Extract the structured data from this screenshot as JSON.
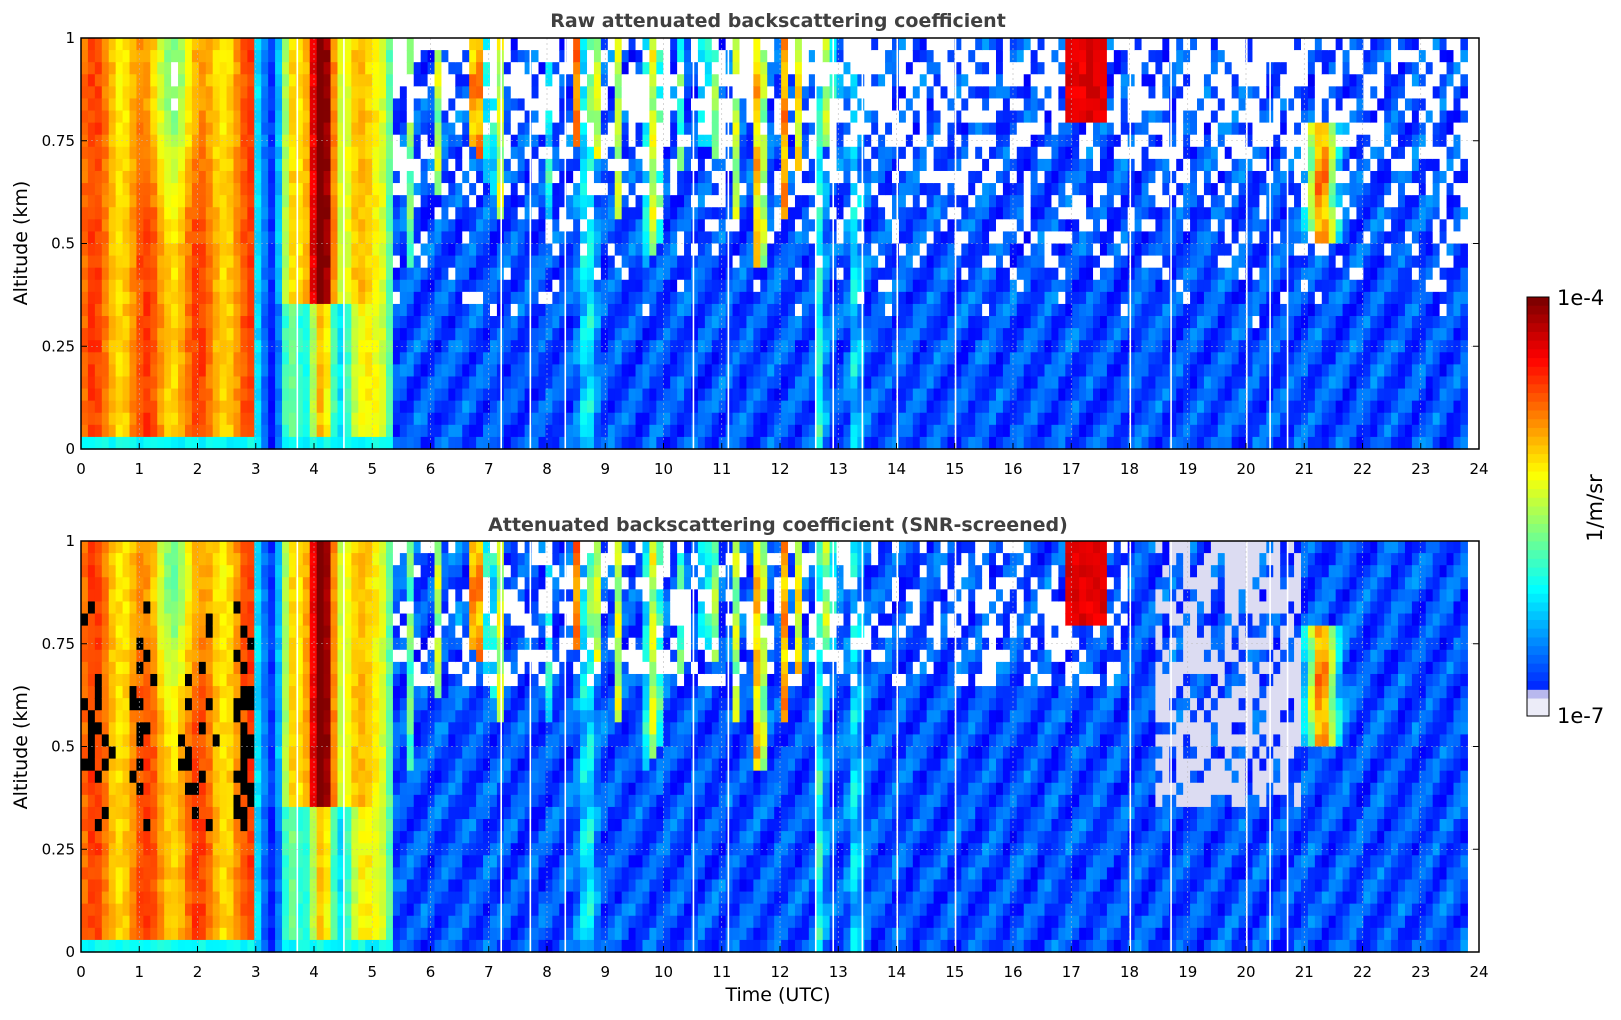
{
  "chart_data": [
    {
      "type": "heatmap",
      "title": "Raw attenuated backscattering coefficient",
      "ylabel": "Altitude (km)",
      "xlabel": "",
      "x_ticks": [
        "0",
        "1",
        "2",
        "3",
        "4",
        "5",
        "6",
        "7",
        "8",
        "9",
        "10",
        "11",
        "12",
        "13",
        "14",
        "15",
        "16",
        "17",
        "18",
        "19",
        "20",
        "21",
        "22",
        "23",
        "24"
      ],
      "y_ticks": [
        "0",
        "0.25",
        "0.5",
        "0.75",
        "1"
      ],
      "xlim": [
        0,
        24
      ],
      "ylim": [
        0,
        1
      ],
      "grid": true,
      "screened": false
    },
    {
      "type": "heatmap",
      "title": "Attenuated backscattering coefficient (SNR-screened)",
      "ylabel": "Altitude (km)",
      "xlabel": "Time (UTC)",
      "x_ticks": [
        "0",
        "1",
        "2",
        "3",
        "4",
        "5",
        "6",
        "7",
        "8",
        "9",
        "10",
        "11",
        "12",
        "13",
        "14",
        "15",
        "16",
        "17",
        "18",
        "19",
        "20",
        "21",
        "22",
        "23",
        "24"
      ],
      "y_ticks": [
        "0",
        "0.25",
        "0.5",
        "0.75",
        "1"
      ],
      "xlim": [
        0,
        24
      ],
      "ylim": [
        0,
        1
      ],
      "grid": true,
      "screened": true
    }
  ],
  "colorbar": {
    "label": "1/m/sr",
    "max_label": "1e-4",
    "min_label": "1e-7",
    "colormap": "jet",
    "min_color": "#ececf8",
    "max_color": "#800000"
  }
}
